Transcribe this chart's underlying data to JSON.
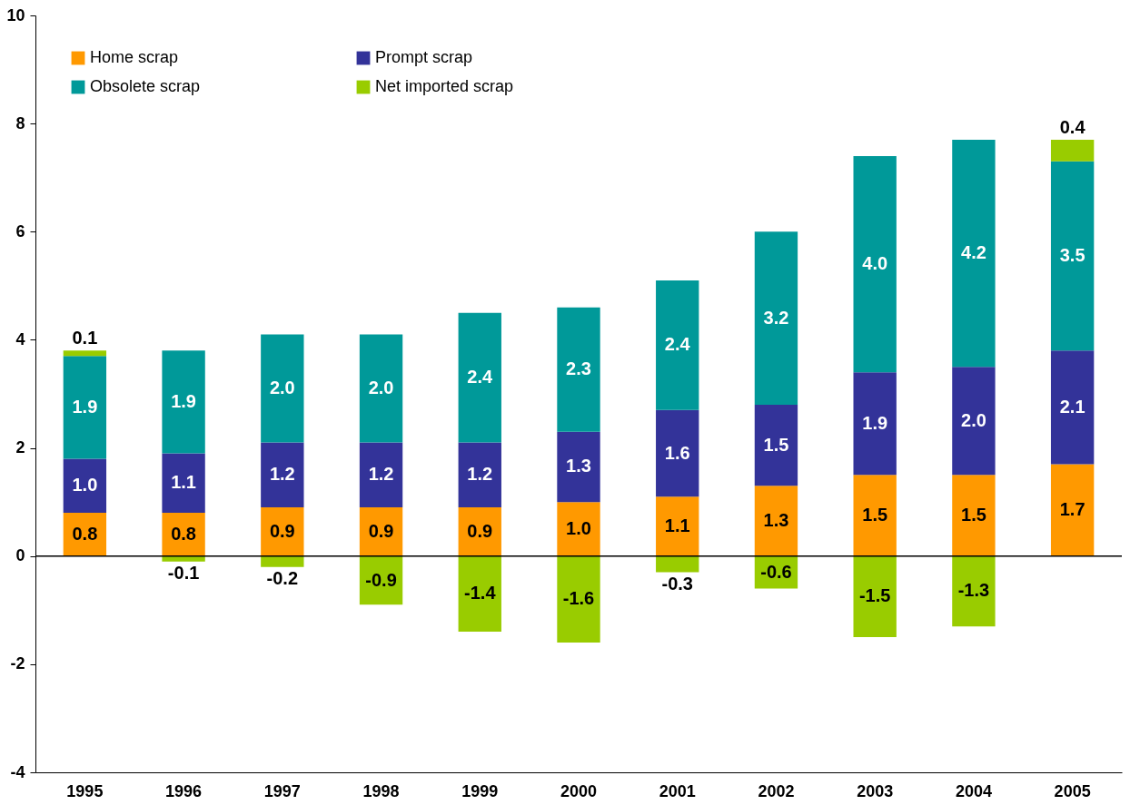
{
  "chart_data": {
    "type": "bar",
    "stacked": true,
    "legend": "top left",
    "grid": false,
    "categories": [
      "1995",
      "1996",
      "1997",
      "1998",
      "1999",
      "2000",
      "2001",
      "2002",
      "2003",
      "2004",
      "2005"
    ],
    "ylim": [
      -4,
      10
    ],
    "yticks": [
      -4,
      -2,
      0,
      2,
      4,
      6,
      8,
      10
    ],
    "ref_lines": [
      {
        "axis": "y",
        "value": 0
      }
    ],
    "series": [
      {
        "name": "Home scrap",
        "color": "#ff9900",
        "values": [
          0.8,
          0.8,
          0.9,
          0.9,
          0.9,
          1.0,
          1.1,
          1.3,
          1.5,
          1.5,
          1.7
        ],
        "value_labels": [
          "0.8",
          "0.8",
          "0.9",
          "0.9",
          "0.9",
          "1.0",
          "1.1",
          "1.3",
          "1.5",
          "1.5",
          "1.7"
        ]
      },
      {
        "name": "Prompt scrap",
        "color": "#333399",
        "values": [
          1.0,
          1.1,
          1.2,
          1.2,
          1.2,
          1.3,
          1.6,
          1.5,
          1.9,
          2.0,
          2.1
        ],
        "value_labels": [
          "1.0",
          "1.1",
          "1.2",
          "1.2",
          "1.2",
          "1.3",
          "1.6",
          "1.5",
          "1.9",
          "2.0",
          "2.1"
        ]
      },
      {
        "name": "Obsolete scrap",
        "color": "#009999",
        "values": [
          1.9,
          1.9,
          2.0,
          2.0,
          2.4,
          2.3,
          2.4,
          3.2,
          4.0,
          4.2,
          3.5
        ],
        "value_labels": [
          "1.9",
          "1.9",
          "2.0",
          "2.0",
          "2.4",
          "2.3",
          "2.4",
          "3.2",
          "4.0",
          "4.2",
          "3.5"
        ]
      },
      {
        "name": "Net imported scrap",
        "color": "#99cc00",
        "values": [
          0.1,
          -0.1,
          -0.2,
          -0.9,
          -1.4,
          -1.6,
          -0.3,
          -0.6,
          -1.5,
          -1.3,
          0.4
        ],
        "value_labels": [
          "0.1",
          "-0.1",
          "-0.2",
          "-0.9",
          "-1.4",
          "-1.6",
          "-0.3",
          "-0.6",
          "-1.5",
          "-1.3",
          "0.4"
        ]
      }
    ]
  }
}
